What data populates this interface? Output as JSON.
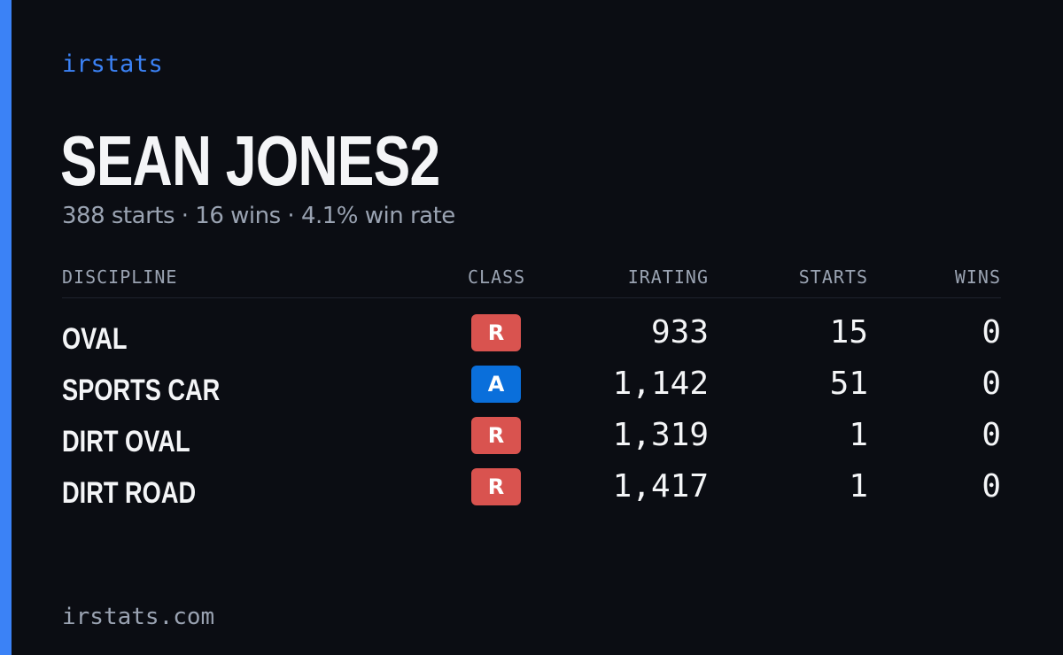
{
  "brand": "irstats",
  "driver": {
    "name": "SEAN JONES2",
    "summary": "388 starts · 16 wins · 4.1% win rate"
  },
  "table": {
    "headers": {
      "discipline": "DISCIPLINE",
      "class": "CLASS",
      "irating": "IRATING",
      "starts": "STARTS",
      "wins": "WINS"
    },
    "rows": [
      {
        "discipline": "OVAL",
        "class": "R",
        "irating": "933",
        "starts": "15",
        "wins": "0"
      },
      {
        "discipline": "SPORTS CAR",
        "class": "A",
        "irating": "1,142",
        "starts": "51",
        "wins": "0"
      },
      {
        "discipline": "DIRT OVAL",
        "class": "R",
        "irating": "1,319",
        "starts": "1",
        "wins": "0"
      },
      {
        "discipline": "DIRT ROAD",
        "class": "R",
        "irating": "1,417",
        "starts": "1",
        "wins": "0"
      }
    ]
  },
  "class_colors": {
    "R": "#d9534f",
    "A": "#0a6fdb"
  },
  "colors": {
    "accent": "#3b82f6",
    "background": "#0b0d13",
    "text_primary": "#f4f5f7",
    "text_muted": "#9aa3b2"
  },
  "footer": "irstats.com"
}
